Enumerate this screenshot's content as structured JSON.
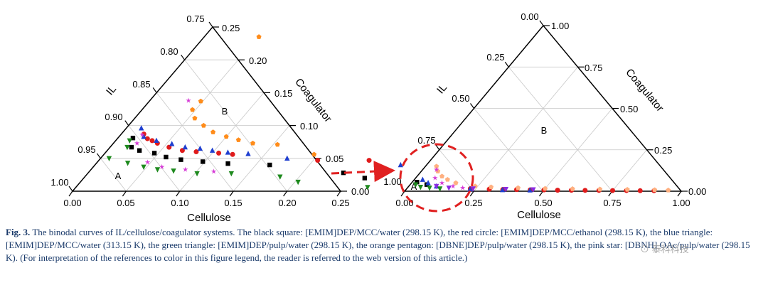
{
  "left_chart": {
    "corner_labels": [
      "A",
      "B"
    ],
    "tick_labels": {
      "left": [
        "0.75",
        "0.80",
        "0.85",
        "0.90",
        "0.95",
        "1.00"
      ],
      "bottom": [
        "0.00",
        "0.05",
        "0.10",
        "0.15",
        "0.20",
        "0.25"
      ],
      "right": [
        "0.00",
        "0.05",
        "0.10",
        "0.15",
        "0.20",
        "0.25"
      ]
    }
  },
  "right_chart": {
    "corner_labels": [
      "A",
      "B"
    ],
    "tick_labels": {
      "left": [
        "0.00",
        "0.25",
        "0.50",
        "0.75",
        "1.00"
      ],
      "bottom": [
        "0.00",
        "0.25",
        "0.50",
        "0.75",
        "1.00"
      ],
      "right": [
        "0.00",
        "0.25",
        "0.50",
        "0.75",
        "1.00"
      ]
    }
  },
  "axis_titles": {
    "il": "IL",
    "coagulator": "Coagulator",
    "cellulose": "Cellulose"
  },
  "chart_data": [
    {
      "type": "scatter",
      "subtype": "ternary",
      "axes": {
        "a": "Cellulose",
        "b": "Coagulator",
        "c": "IL"
      },
      "range": {
        "cellulose": [
          0,
          0.25
        ],
        "coagulator": [
          0,
          0.25
        ],
        "il": [
          0.75,
          1.0
        ]
      },
      "regions": [
        "A",
        "B"
      ],
      "series": [
        {
          "color": "#000000",
          "marker": "square",
          "points": [
            [
              0.014,
              0.081
            ],
            [
              0.02,
              0.067
            ],
            [
              0.03,
              0.062
            ],
            [
              0.046,
              0.058
            ],
            [
              0.06,
              0.052
            ],
            [
              0.076,
              0.048
            ],
            [
              0.098,
              0.045
            ],
            [
              0.123,
              0.042
            ],
            [
              0.163,
              0.04
            ],
            [
              0.238,
              0.028
            ],
            [
              0.262,
              0.02
            ]
          ]
        },
        {
          "color": "#e01b1b",
          "marker": "circle",
          "points": [
            [
              0.021,
              0.087
            ],
            [
              0.028,
              0.08
            ],
            [
              0.034,
              0.077
            ],
            [
              0.041,
              0.073
            ],
            [
              0.055,
              0.067
            ],
            [
              0.07,
              0.062
            ],
            [
              0.084,
              0.06
            ],
            [
              0.106,
              0.058
            ],
            [
              0.12,
              0.056
            ],
            [
              0.204,
              0.047
            ],
            [
              0.252,
              0.047
            ]
          ]
        },
        {
          "color": "#1f3fd0",
          "marker": "triangle-up",
          "points": [
            [
              0.014,
              0.096
            ],
            [
              0.023,
              0.083
            ],
            [
              0.038,
              0.077
            ],
            [
              0.055,
              0.072
            ],
            [
              0.07,
              0.067
            ],
            [
              0.085,
              0.065
            ],
            [
              0.098,
              0.062
            ],
            [
              0.114,
              0.059
            ],
            [
              0.134,
              0.057
            ],
            [
              0.174,
              0.05
            ],
            [
              0.285,
              0.04
            ]
          ]
        },
        {
          "color": "#1e8a1e",
          "marker": "triangle-down",
          "points": [
            [
              0.013,
              0.077
            ],
            [
              0.016,
              0.067
            ],
            [
              0.008,
              0.05
            ],
            [
              0.029,
              0.043
            ],
            [
              0.047,
              0.037
            ],
            [
              0.062,
              0.033
            ],
            [
              0.078,
              0.031
            ],
            [
              0.102,
              0.027
            ],
            [
              0.134,
              0.027
            ],
            [
              0.182,
              0.022
            ],
            [
              0.203,
              0.014
            ],
            [
              0.272,
              0.006
            ]
          ]
        },
        {
          "color": "#ff8c1a",
          "marker": "pentagon",
          "points": [
            [
              0.051,
              0.235
            ],
            [
              0.048,
              0.137
            ],
            [
              0.047,
              0.124
            ],
            [
              0.056,
              0.111
            ],
            [
              0.07,
              0.1
            ],
            [
              0.084,
              0.09
            ],
            [
              0.1,
              0.083
            ],
            [
              0.114,
              0.078
            ],
            [
              0.13,
              0.073
            ],
            [
              0.154,
              0.071
            ],
            [
              0.196,
              0.056
            ]
          ]
        },
        {
          "color": "#d63ad6",
          "marker": "star",
          "points": [
            [
              0.036,
              0.138
            ],
            [
              0.02,
              0.086
            ],
            [
              0.022,
              0.073
            ],
            [
              0.047,
              0.044
            ],
            [
              0.064,
              0.037
            ],
            [
              0.088,
              0.033
            ],
            [
              0.116,
              0.03
            ]
          ]
        }
      ]
    },
    {
      "type": "scatter",
      "subtype": "ternary",
      "axes": {
        "a": "Cellulose",
        "b": "Coagulator",
        "c": "IL"
      },
      "range": {
        "cellulose": [
          0,
          1.0
        ],
        "coagulator": [
          0,
          1.0
        ],
        "il": [
          0,
          1.0
        ]
      },
      "regions": [
        "A",
        "B"
      ],
      "series": [
        {
          "color": "#000000",
          "marker": "square",
          "points": [
            [
              0.017,
              0.055
            ],
            [
              0.06,
              0.04
            ]
          ]
        },
        {
          "color": "#e01b1b",
          "marker": "circle",
          "points": [
            [
              0.23,
              0.015
            ],
            [
              0.3,
              0.012
            ],
            [
              0.35,
              0.01
            ],
            [
              0.4,
              0.01
            ],
            [
              0.45,
              0.008
            ],
            [
              0.5,
              0.008
            ],
            [
              0.55,
              0.006
            ],
            [
              0.6,
              0.006
            ],
            [
              0.65,
              0.005
            ],
            [
              0.7,
              0.005
            ],
            [
              0.75,
              0.004
            ],
            [
              0.8,
              0.004
            ],
            [
              0.85,
              0.003
            ],
            [
              0.9,
              0.003
            ]
          ]
        },
        {
          "color": "#1f3fd0",
          "marker": "triangle-up",
          "points": [
            [
              0.03,
              0.07
            ],
            [
              0.06,
              0.05
            ],
            [
              0.1,
              0.03
            ],
            [
              0.23,
              0.012
            ],
            [
              0.35,
              0.008
            ],
            [
              0.45,
              0.006
            ]
          ]
        },
        {
          "color": "#1e8a1e",
          "marker": "triangle-down",
          "points": [
            [
              0.02,
              0.04
            ],
            [
              0.045,
              0.025
            ],
            [
              0.08,
              0.02
            ],
            [
              0.12,
              0.015
            ]
          ]
        },
        {
          "color": "#ffb080",
          "marker": "pentagon",
          "points": [
            [
              0.04,
              0.15
            ],
            [
              0.06,
              0.12
            ],
            [
              0.09,
              0.09
            ],
            [
              0.12,
              0.07
            ],
            [
              0.16,
              0.05
            ],
            [
              0.24,
              0.03
            ],
            [
              0.3,
              0.025
            ],
            [
              0.4,
              0.02
            ],
            [
              0.5,
              0.016
            ],
            [
              0.6,
              0.014
            ],
            [
              0.7,
              0.012
            ],
            [
              0.8,
              0.01
            ],
            [
              0.9,
              0.008
            ],
            [
              0.95,
              0.006
            ]
          ]
        },
        {
          "color": "#d63ad6",
          "marker": "star",
          "points": [
            [
              0.05,
              0.13
            ],
            [
              0.07,
              0.08
            ],
            [
              0.11,
              0.05
            ],
            [
              0.16,
              0.03
            ],
            [
              0.2,
              0.02
            ]
          ]
        },
        {
          "color": "#8a2be2",
          "marker": "triangle-down",
          "points": [
            [
              0.1,
              0.03
            ],
            [
              0.15,
              0.02
            ],
            [
              0.24,
              0.015
            ],
            [
              0.36,
              0.012
            ],
            [
              0.46,
              0.01
            ]
          ]
        }
      ]
    }
  ],
  "caption": {
    "label": "Fig. 3.",
    "text": " The binodal curves of IL/cellulose/coagulator systems. The black square: [EMIM]DEP/MCC/water (298.15 K), the red circle: [EMIM]DEP/MCC/ethanol (298.15 K), the blue triangle: [EMIM]DEP/MCC/water (313.15 K), the green triangle: [EMIM]DEP/pulp/water (298.15 K), the orange pentagon: [DBNE]DEP/pulp/water (298.15 K), the pink star: [DBNH] OAc/pulp/water (298.15 K). (For interpretation of the references to color in this figure legend, the reader is referred to the web version of this article.)"
  },
  "watermark": "⊙ 泰科科技"
}
